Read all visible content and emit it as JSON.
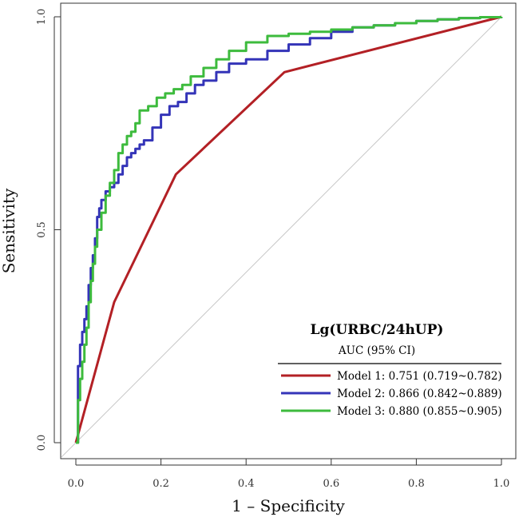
{
  "chart_data": {
    "type": "line",
    "title": "",
    "xlabel": "1 – Specificity",
    "ylabel": "Sensitivity",
    "xlim": [
      0.0,
      1.0
    ],
    "ylim": [
      0.0,
      1.0
    ],
    "x_ticks": [
      "0.0",
      "0.2",
      "0.4",
      "0.6",
      "0.8",
      "1.0"
    ],
    "y_ticks": [
      "0.0",
      "0.5",
      "1.0"
    ],
    "grid": false,
    "reference_line": {
      "x": [
        0,
        1
      ],
      "y": [
        0,
        1
      ],
      "color": "#c8c8c8"
    },
    "legend": {
      "position": "bottom-right",
      "title": "Lg(URBC/24hUP)",
      "subtitle": "AUC (95% CI)"
    },
    "series": [
      {
        "name": "Model 1",
        "label": "Model 1: 0.751 (0.719~0.782)",
        "color": "#b32025",
        "x": [
          0.0,
          0.09,
          0.235,
          0.49,
          1.0
        ],
        "y": [
          0.0,
          0.33,
          0.63,
          0.87,
          1.0
        ]
      },
      {
        "name": "Model 2",
        "label": "Model 2: 0.866 (0.842~0.889)",
        "color": "#3434b8",
        "x": [
          0.0,
          0.005,
          0.01,
          0.015,
          0.02,
          0.025,
          0.03,
          0.035,
          0.04,
          0.045,
          0.05,
          0.055,
          0.06,
          0.07,
          0.08,
          0.09,
          0.1,
          0.11,
          0.12,
          0.13,
          0.14,
          0.15,
          0.16,
          0.18,
          0.2,
          0.22,
          0.24,
          0.26,
          0.28,
          0.3,
          0.33,
          0.36,
          0.4,
          0.45,
          0.5,
          0.55,
          0.6,
          0.65,
          0.7,
          0.75,
          0.8,
          0.85,
          0.9,
          0.95,
          1.0
        ],
        "y": [
          0.0,
          0.18,
          0.23,
          0.26,
          0.29,
          0.32,
          0.37,
          0.41,
          0.44,
          0.48,
          0.53,
          0.55,
          0.57,
          0.59,
          0.6,
          0.61,
          0.63,
          0.65,
          0.67,
          0.68,
          0.69,
          0.7,
          0.71,
          0.74,
          0.77,
          0.79,
          0.8,
          0.82,
          0.84,
          0.85,
          0.87,
          0.89,
          0.9,
          0.92,
          0.935,
          0.95,
          0.965,
          0.975,
          0.98,
          0.985,
          0.99,
          0.994,
          0.997,
          0.999,
          1.0
        ]
      },
      {
        "name": "Model 3",
        "label": "Model 3: 0.880 (0.855~0.905)",
        "color": "#3dbb3d",
        "x": [
          0.0,
          0.005,
          0.01,
          0.015,
          0.02,
          0.025,
          0.03,
          0.035,
          0.04,
          0.045,
          0.05,
          0.06,
          0.07,
          0.08,
          0.09,
          0.1,
          0.11,
          0.12,
          0.13,
          0.14,
          0.15,
          0.17,
          0.19,
          0.21,
          0.23,
          0.25,
          0.27,
          0.3,
          0.33,
          0.36,
          0.4,
          0.45,
          0.5,
          0.55,
          0.6,
          0.65,
          0.7,
          0.75,
          0.8,
          0.85,
          0.9,
          0.95,
          1.0
        ],
        "y": [
          0.0,
          0.1,
          0.15,
          0.19,
          0.23,
          0.27,
          0.33,
          0.38,
          0.42,
          0.46,
          0.5,
          0.54,
          0.58,
          0.61,
          0.64,
          0.68,
          0.7,
          0.72,
          0.73,
          0.75,
          0.78,
          0.79,
          0.81,
          0.82,
          0.83,
          0.84,
          0.86,
          0.88,
          0.9,
          0.92,
          0.94,
          0.955,
          0.96,
          0.965,
          0.97,
          0.975,
          0.98,
          0.985,
          0.99,
          0.994,
          0.997,
          0.999,
          1.0
        ]
      }
    ]
  }
}
